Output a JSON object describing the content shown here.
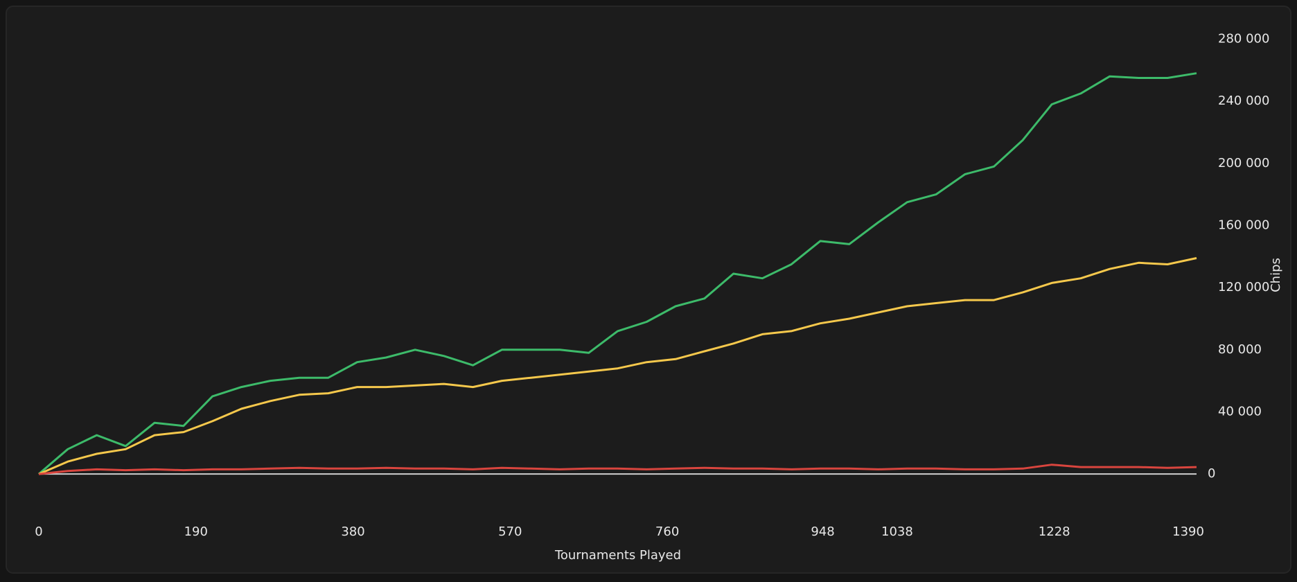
{
  "chart_data": {
    "type": "line",
    "x_label": "Tournaments Played",
    "y_label": "Chips",
    "x": [
      0,
      35,
      70,
      105,
      140,
      175,
      210,
      245,
      280,
      315,
      350,
      385,
      420,
      455,
      490,
      525,
      560,
      595,
      630,
      665,
      700,
      735,
      770,
      805,
      840,
      875,
      910,
      945,
      980,
      1015,
      1050,
      1085,
      1120,
      1155,
      1190,
      1225,
      1260,
      1295,
      1330,
      1365,
      1400
    ],
    "series": [
      {
        "color": "#3dbb6a",
        "values": [
          0,
          16000,
          25000,
          18000,
          33000,
          31000,
          50000,
          56000,
          60000,
          62000,
          62000,
          72000,
          75000,
          80000,
          76000,
          70000,
          80000,
          80000,
          80000,
          78000,
          92000,
          98000,
          108000,
          113000,
          129000,
          126000,
          135000,
          150000,
          148000,
          162000,
          175000,
          180000,
          193000,
          198000,
          215000,
          238000,
          245000,
          256000,
          255000,
          255000,
          258000
        ]
      },
      {
        "color": "#f5c84c",
        "values": [
          0,
          8000,
          13000,
          16000,
          25000,
          27000,
          34000,
          42000,
          47000,
          51000,
          52000,
          56000,
          56000,
          57000,
          58000,
          56000,
          60000,
          62000,
          64000,
          66000,
          68000,
          72000,
          74000,
          79000,
          84000,
          90000,
          92000,
          97000,
          100000,
          104000,
          108000,
          110000,
          112000,
          112000,
          117000,
          123000,
          126000,
          132000,
          136000,
          135000,
          139000
        ]
      },
      {
        "color": "#d9453e",
        "values": [
          0,
          2000,
          3000,
          2500,
          3000,
          2500,
          3000,
          3000,
          3500,
          4000,
          3500,
          3500,
          4000,
          3500,
          3500,
          3000,
          4000,
          3500,
          3000,
          3500,
          3500,
          3000,
          3500,
          4000,
          3500,
          3500,
          3000,
          3500,
          3500,
          3000,
          3500,
          3500,
          3000,
          3000,
          3500,
          6000,
          4500,
          4500,
          4500,
          4000,
          4500
        ]
      }
    ],
    "xlim": [
      0,
      1400
    ],
    "xticks": [
      0,
      190,
      380,
      570,
      760,
      948,
      1038,
      1228,
      1390
    ],
    "ylim": [
      -20000,
      290000
    ],
    "yticks": [
      0,
      {
        "value": 40000,
        "label": "40 000"
      },
      {
        "value": 80000,
        "label": "80 000"
      },
      {
        "value": 120000,
        "label": "120 000"
      },
      {
        "value": 160000,
        "label": "160 000"
      },
      {
        "value": 200000,
        "label": "200 000"
      },
      {
        "value": 240000,
        "label": "240 000"
      },
      {
        "value": 280000,
        "label": "280 000"
      }
    ]
  }
}
